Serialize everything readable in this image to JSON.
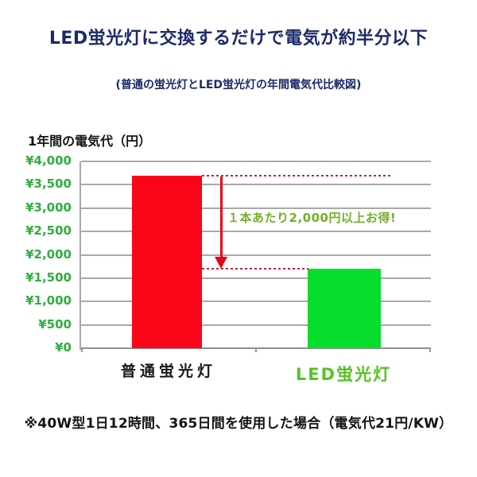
{
  "page": {
    "title": "LED蛍光灯に交換するだけで電気が約半分以下",
    "subtitle": "(普通の蛍光灯とLED蛍光灯の年間電気代比較図)",
    "footnote": "※40W型1日12時間、365日間を使用した場合（電気代21円/KW）"
  },
  "chart_data": {
    "type": "bar",
    "title": "1年間の電気代（円）",
    "ylabel": "1年間の電気代（円）",
    "categories": [
      "普通蛍光灯",
      "LED蛍光灯"
    ],
    "values": [
      3700,
      1700
    ],
    "ylim": [
      0,
      4000
    ],
    "ytick_step": 500,
    "ytick_labels": [
      "¥0",
      "¥500",
      "¥1,000",
      "¥1,500",
      "¥2,000",
      "¥2,500",
      "¥3,000",
      "¥3,500",
      "¥4,000"
    ],
    "grid": true,
    "legend": "none",
    "annotation": {
      "text": "１本あたり2,000円以上お得!",
      "from_value": 3700,
      "to_value": 1700
    },
    "colors": {
      "bar_normal": "#fa0418",
      "bar_led": "#06dd2c",
      "tick_labels": "#2fae3e",
      "annotation_text": "#76ad2b",
      "category_normal": "#1a1a1a",
      "category_led": "#58c226",
      "dashed_line": "#c8202e",
      "arrow": "#e80616",
      "gridline": "#a9a9a9",
      "title_navy": "#1c2a69"
    }
  }
}
